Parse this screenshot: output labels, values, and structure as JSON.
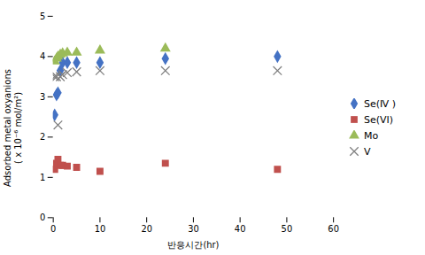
{
  "chart_data": {
    "type": "scatter",
    "xlabel": "반응시간(hr)",
    "ylabel": "Adsorbed metal oxyanions\n( x 10⁻⁶ mol/m²)",
    "xlim": [
      0,
      60
    ],
    "ylim": [
      0,
      5
    ],
    "xticks": [
      0,
      10,
      20,
      30,
      40,
      50,
      60
    ],
    "yticks": [
      0,
      1,
      2,
      3,
      4,
      5
    ],
    "grid": false,
    "legend": "right",
    "series": [
      {
        "name": "Se(Ⅳ )",
        "color": "#4472c4",
        "marker": "diamond",
        "x": [
          0.3,
          0.7,
          1.0,
          1.5,
          2.0,
          3.0,
          5.0,
          10.0,
          24.0,
          48.0
        ],
        "values": [
          2.55,
          3.05,
          3.1,
          3.65,
          3.85,
          3.85,
          3.85,
          3.85,
          3.95,
          4.0
        ]
      },
      {
        "name": "Se(ⅤⅠ)",
        "color": "#c0504d",
        "marker": "square",
        "x": [
          0.3,
          0.7,
          1.0,
          1.5,
          2.0,
          3.0,
          5.0,
          10.0,
          24.0,
          48.0
        ],
        "values": [
          1.2,
          1.35,
          1.45,
          1.3,
          1.3,
          1.28,
          1.25,
          1.15,
          1.35,
          1.2
        ]
      },
      {
        "name": "Mo",
        "color": "#9bbb59",
        "marker": "triangle",
        "x": [
          0.3,
          0.7,
          1.0,
          1.5,
          2.0,
          3.0,
          5.0,
          10.0,
          24.0
        ],
        "values": [
          3.88,
          3.95,
          4.0,
          4.05,
          4.08,
          4.1,
          4.1,
          4.15,
          4.2
        ]
      },
      {
        "name": "V",
        "color": "#808080",
        "marker": "times",
        "x": [
          0.3,
          0.7,
          1.0,
          1.5,
          2.0,
          3.0,
          5.0,
          10.0,
          24.0,
          48.0
        ],
        "values": [
          3.5,
          3.5,
          2.3,
          3.5,
          3.55,
          3.6,
          3.62,
          3.65,
          3.65,
          3.65
        ]
      }
    ]
  }
}
